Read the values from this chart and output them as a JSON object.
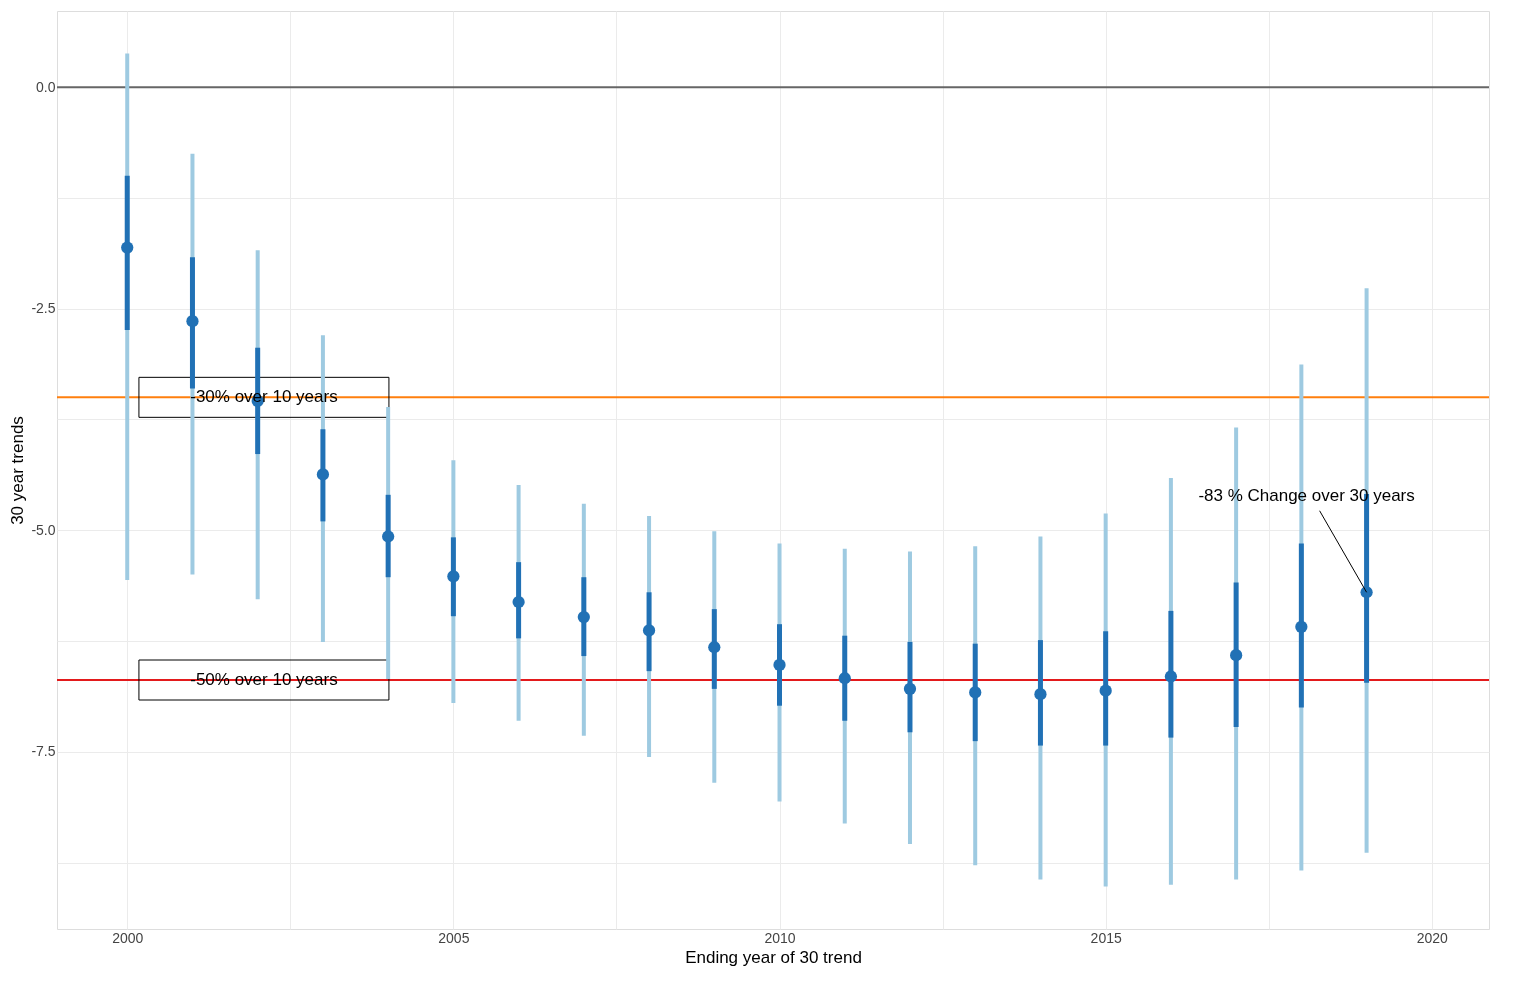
{
  "chart_data": {
    "type": "scatter",
    "xlabel": "Ending year of 30 trend",
    "ylabel": "30 year trends",
    "x": [
      2000,
      2001,
      2002,
      2003,
      2004,
      2005,
      2006,
      2007,
      2008,
      2009,
      2010,
      2011,
      2012,
      2013,
      2014,
      2015,
      2016,
      2017,
      2018,
      2019
    ],
    "series": [
      {
        "type": "bar",
        "color": "#9ecae1",
        "base": [
          -5.56,
          -5.5,
          -5.78,
          -6.26,
          -6.68,
          -6.95,
          -7.15,
          -7.32,
          -7.56,
          -7.85,
          -8.06,
          -8.31,
          -8.54,
          -8.78,
          -8.94,
          -9.02,
          -9.0,
          -8.94,
          -8.84,
          -8.64
        ],
        "values": [
          5.94,
          4.75,
          3.94,
          3.46,
          3.07,
          2.74,
          2.66,
          2.62,
          2.72,
          2.84,
          2.91,
          3.1,
          3.3,
          3.6,
          3.87,
          4.21,
          4.59,
          5.1,
          5.71,
          6.37
        ]
      },
      {
        "type": "bar",
        "color": "#2171b5",
        "base": [
          -2.74,
          -3.4,
          -4.14,
          -4.9,
          -5.53,
          -5.97,
          -6.22,
          -6.42,
          -6.59,
          -6.79,
          -6.98,
          -7.15,
          -7.28,
          -7.38,
          -7.43,
          -7.43,
          -7.34,
          -7.22,
          -7.0,
          -6.72
        ],
        "values": [
          1.74,
          1.48,
          1.2,
          1.04,
          0.93,
          0.89,
          0.86,
          0.89,
          0.89,
          0.9,
          0.92,
          0.96,
          1.02,
          1.1,
          1.19,
          1.29,
          1.43,
          1.63,
          1.85,
          2.13
        ]
      },
      {
        "color": "#2171b5",
        "values": [
          -1.81,
          -2.64,
          -3.54,
          -4.37,
          -5.07,
          -5.52,
          -5.81,
          -5.98,
          -6.13,
          -6.32,
          -6.52,
          -6.67,
          -6.79,
          -6.83,
          -6.85,
          -6.81,
          -6.65,
          -6.41,
          -6.09,
          -5.7
        ]
      }
    ],
    "marker": "circle",
    "xlim": [
      1999.0,
      2020.8
    ],
    "xticks": [
      2000,
      {
        "value": 2002.5,
        "label": null
      },
      2005,
      {
        "value": 2007.5,
        "label": null
      },
      2010,
      {
        "value": 2012.5,
        "label": null
      },
      2015,
      {
        "value": 2017.5,
        "label": null
      },
      2020
    ],
    "ylim": [
      -9.5,
      0.86
    ],
    "yticks": [
      {
        "value": 0,
        "label": "0.0"
      },
      {
        "value": -1.25,
        "label": null
      },
      {
        "value": -2.5,
        "label": "-2.5"
      },
      {
        "value": -3.75,
        "label": null
      },
      {
        "value": -5,
        "label": "-5.0"
      },
      {
        "value": -6.25,
        "label": null
      },
      {
        "value": -7.5,
        "label": "-7.5"
      },
      {
        "value": -8.75,
        "label": null
      }
    ],
    "ref_lines": [
      {
        "axis": "y",
        "value": 0,
        "label": null,
        "color": "#666666"
      },
      {
        "axis": "y",
        "value": -3.5,
        "label": "-30% over 10 years",
        "color": "#ff7f0e"
      },
      {
        "axis": "y",
        "value": -6.69,
        "label": "-50% over 10 years",
        "color": "#e31a1c"
      }
    ],
    "annotations": [
      {
        "text": "-83 % Change over 30 years",
        "x": 2019,
        "y": -5.7
      }
    ],
    "grid": true
  }
}
